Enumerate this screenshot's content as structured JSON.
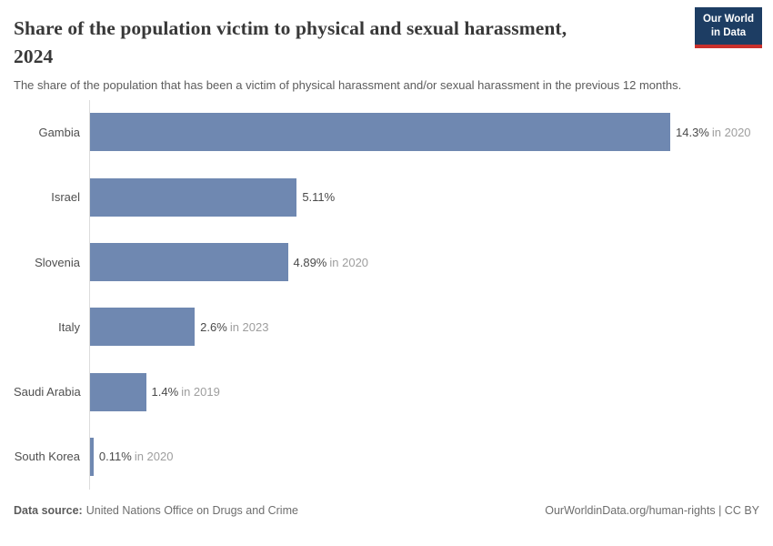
{
  "header": {
    "title_line1": "Share of the population victim to physical and sexual harassment,",
    "title_line2": "2024",
    "subtitle": "The share of the population that has been a victim of physical harassment and/or sexual harassment in the previous 12 months."
  },
  "logo": {
    "line1": "Our World",
    "line2": "in Data",
    "bg_color": "#1d3d63",
    "accent_color": "#c9302c"
  },
  "chart_data": {
    "type": "bar",
    "orientation": "horizontal",
    "title": "Share of the population victim to physical and sexual harassment, 2024",
    "categories": [
      "Gambia",
      "Israel",
      "Slovenia",
      "Italy",
      "Saudi Arabia",
      "South Korea"
    ],
    "values": [
      14.3,
      5.11,
      4.89,
      2.6,
      1.4,
      0.11
    ],
    "value_labels": [
      "14.3%",
      "5.11%",
      "4.89%",
      "2.6%",
      "1.4%",
      "0.11%"
    ],
    "year_labels": [
      "in 2020",
      "",
      "in 2020",
      "in 2023",
      "in 2019",
      "in 2020"
    ],
    "xlim": [
      0,
      14.3
    ],
    "xmax": 14.3,
    "bar_color": "#6f88b1",
    "axis_color": "#dcdcdc",
    "grid": false,
    "legend": "none"
  },
  "footer": {
    "datasource_label": "Data source:",
    "datasource_value": "United Nations Office on Drugs and Crime",
    "credit": "OurWorldinData.org/human-rights | CC BY"
  }
}
